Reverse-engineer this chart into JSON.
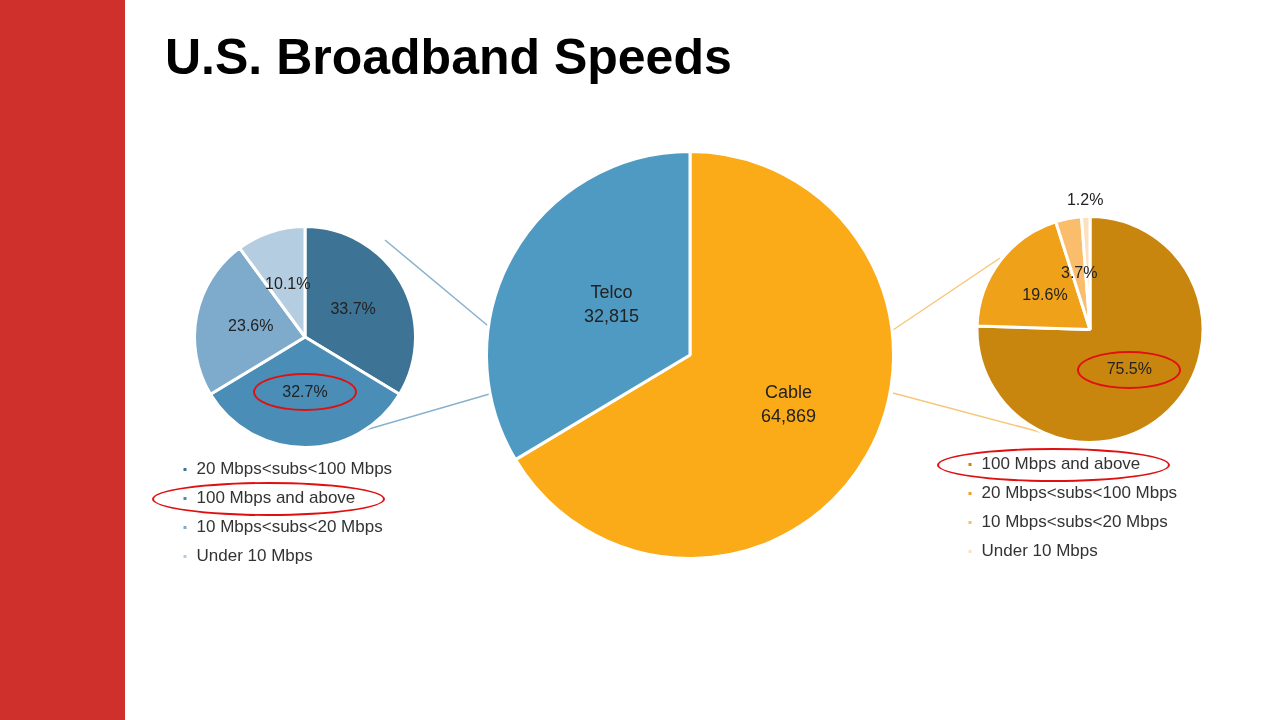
{
  "chart_data": [
    {
      "type": "pie",
      "title": "U.S. Broadband Speeds",
      "categories": [
        "20 Mbps<subs<100 Mbps",
        "100 Mbps and above",
        "10 Mbps<subs<20 Mbps",
        "Under 10 Mbps"
      ],
      "values": [
        33.7,
        32.7,
        23.6,
        10.1
      ],
      "value_labels": [
        "33.7%",
        "32.7%",
        "23.6%",
        "10.1%"
      ],
      "colors": [
        "#3d7394",
        "#4a8db6",
        "#7eabcb",
        "#b5cde0"
      ],
      "legend": "bottom"
    },
    {
      "type": "pie",
      "categories": [
        "Cable",
        "Telco"
      ],
      "values": [
        64869,
        32815
      ],
      "value_labels": [
        "64,869",
        "32,815"
      ],
      "colors": [
        "#fbab18",
        "#4f9ac2"
      ],
      "legend": false
    },
    {
      "type": "pie",
      "categories": [
        "100 Mbps and above",
        "20 Mbps<subs<100 Mbps",
        "10 Mbps<subs<20 Mbps",
        "Under 10 Mbps"
      ],
      "values": [
        75.5,
        19.6,
        3.7,
        1.2
      ],
      "value_labels": [
        "75.5%",
        "19.6%",
        "3.7%",
        "1.2%"
      ],
      "colors": [
        "#c8860f",
        "#f0a11a",
        "#f9bd6b",
        "#fde0bc"
      ],
      "legend": "bottom"
    }
  ]
}
